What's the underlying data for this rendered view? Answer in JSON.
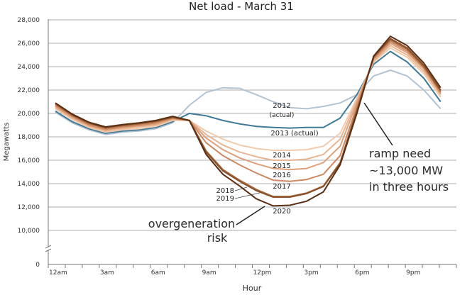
{
  "chart_data": {
    "type": "line",
    "title": "Net load - March 31",
    "xlabel": "Hour",
    "ylabel": "Megawatts",
    "ylim": [
      0,
      28000
    ],
    "yticks": [
      0,
      10000,
      12000,
      14000,
      16000,
      18000,
      20000,
      22000,
      24000,
      26000,
      28000
    ],
    "ytick_labels": [
      "0",
      "10,000",
      "12,000",
      "14,000",
      "16,000",
      "18,000",
      "20,000",
      "22,000",
      "24,000",
      "26,000",
      "28,000"
    ],
    "xtick_labels": [
      "12am",
      "3am",
      "6am",
      "9am",
      "12pm",
      "3pm",
      "6pm",
      "9pm"
    ],
    "grid": true,
    "x": [
      0,
      1,
      2,
      3,
      4,
      5,
      6,
      7,
      8,
      9,
      10,
      11,
      12,
      13,
      14,
      15,
      16,
      17,
      18,
      19,
      20,
      21,
      22,
      23
    ],
    "series": [
      {
        "name": "2012",
        "label": "2012",
        "sublabel": "(actual)",
        "color": "#b3c3d2",
        "values": [
          20100,
          19200,
          18600,
          18200,
          18400,
          18500,
          18700,
          19200,
          20700,
          21800,
          22200,
          22150,
          21600,
          21000,
          20500,
          20400,
          20600,
          20900,
          21600,
          23200,
          23700,
          23200,
          22000,
          20400
        ]
      },
      {
        "name": "2013",
        "label": "2013 (actual)",
        "color": "#3f7a98",
        "values": [
          20200,
          19300,
          18700,
          18300,
          18500,
          18600,
          18800,
          19300,
          20000,
          19800,
          19400,
          19100,
          18900,
          18800,
          18750,
          18800,
          18800,
          19600,
          21600,
          24200,
          25300,
          24400,
          23000,
          21000
        ]
      },
      {
        "name": "2014",
        "label": "2014",
        "color": "#f0cbad",
        "values": [
          20400,
          19500,
          18800,
          18400,
          18600,
          18700,
          18900,
          19400,
          19400,
          18500,
          17800,
          17300,
          17000,
          16850,
          16850,
          16900,
          17200,
          18300,
          21300,
          24400,
          25600,
          24800,
          23400,
          21400
        ]
      },
      {
        "name": "2015",
        "label": "2015",
        "color": "#e8b693",
        "values": [
          20500,
          19600,
          18900,
          18500,
          18700,
          18850,
          19000,
          19500,
          19400,
          18200,
          17300,
          16700,
          16300,
          16000,
          16000,
          16100,
          16500,
          17800,
          21100,
          24500,
          25800,
          25000,
          23600,
          21600
        ]
      },
      {
        "name": "2016",
        "label": "2016",
        "color": "#dca07b",
        "values": [
          20600,
          19700,
          19000,
          18600,
          18800,
          18950,
          19100,
          19550,
          19400,
          17900,
          16900,
          16200,
          15700,
          15300,
          15200,
          15300,
          15800,
          17200,
          20900,
          24600,
          26000,
          25200,
          23800,
          21700
        ]
      },
      {
        "name": "2017",
        "label": "2017",
        "color": "#cc8862",
        "values": [
          20700,
          19750,
          19050,
          18650,
          18850,
          19000,
          19200,
          19600,
          19400,
          17500,
          16400,
          15600,
          14900,
          14300,
          14200,
          14350,
          14800,
          16400,
          20600,
          24700,
          26150,
          25350,
          23900,
          21800
        ]
      },
      {
        "name": "2018",
        "label": "2018",
        "color": "#a86a40",
        "values": [
          20800,
          19850,
          19150,
          18750,
          18950,
          19100,
          19300,
          19650,
          19400,
          16800,
          15200,
          14300,
          13500,
          12900,
          12900,
          13200,
          13800,
          15800,
          20300,
          24800,
          26300,
          25500,
          24000,
          21900
        ]
      },
      {
        "name": "2019",
        "label": "2019",
        "color": "#8a5029",
        "values": [
          20850,
          19900,
          19200,
          18800,
          19000,
          19150,
          19350,
          19700,
          19400,
          16700,
          15100,
          14200,
          13400,
          12850,
          12850,
          13150,
          13750,
          15700,
          20200,
          24850,
          26400,
          25600,
          24100,
          22000
        ]
      },
      {
        "name": "2020",
        "label": "2020",
        "color": "#5a2e12",
        "values": [
          20900,
          19950,
          19250,
          18850,
          19050,
          19200,
          19400,
          19750,
          19400,
          16500,
          14800,
          13800,
          12700,
          12100,
          12150,
          12500,
          13300,
          15600,
          20000,
          24900,
          26600,
          25800,
          24300,
          22200
        ]
      }
    ],
    "annotations": {
      "overgeneration": [
        "overgeneration",
        "risk"
      ],
      "ramp": [
        "ramp need",
        "~13,000 MW",
        "in three hours"
      ]
    }
  }
}
